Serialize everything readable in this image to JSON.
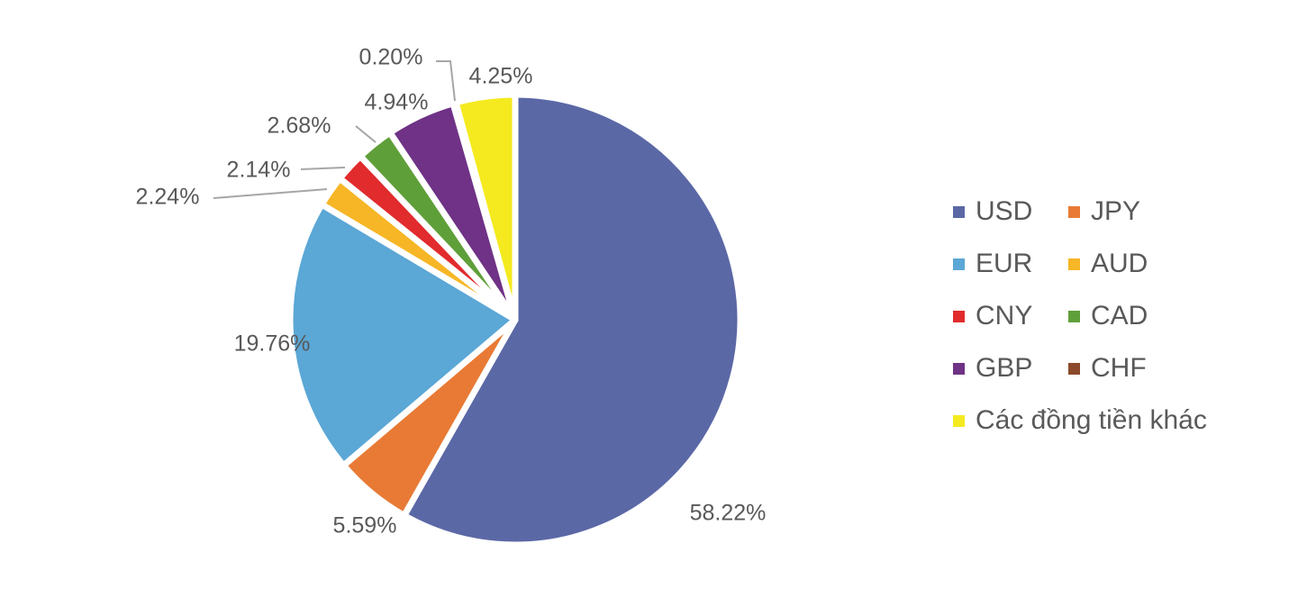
{
  "chart_data": {
    "type": "pie",
    "title": "",
    "categories": [
      "USD",
      "JPY",
      "EUR",
      "AUD",
      "CNY",
      "CAD",
      "GBP",
      "CHF",
      "Các đồng tiền khác"
    ],
    "values": [
      58.22,
      5.59,
      19.76,
      2.24,
      2.14,
      2.68,
      4.94,
      0.2,
      4.25
    ],
    "data_labels": [
      "58.22%",
      "5.59%",
      "19.76%",
      "2.24%",
      "2.14%",
      "2.68%",
      "4.94%",
      "0.20%",
      "4.25%"
    ],
    "colors": [
      "#5b68a6",
      "#e87a35",
      "#5ba7d6",
      "#f6b626",
      "#e12b2d",
      "#5f9f3a",
      "#6f3286",
      "#8b4a2b",
      "#f4ea1f"
    ],
    "start_angle_deg": 0,
    "direction": "clockwise",
    "legend_position": "right",
    "legend_columns": 2
  }
}
